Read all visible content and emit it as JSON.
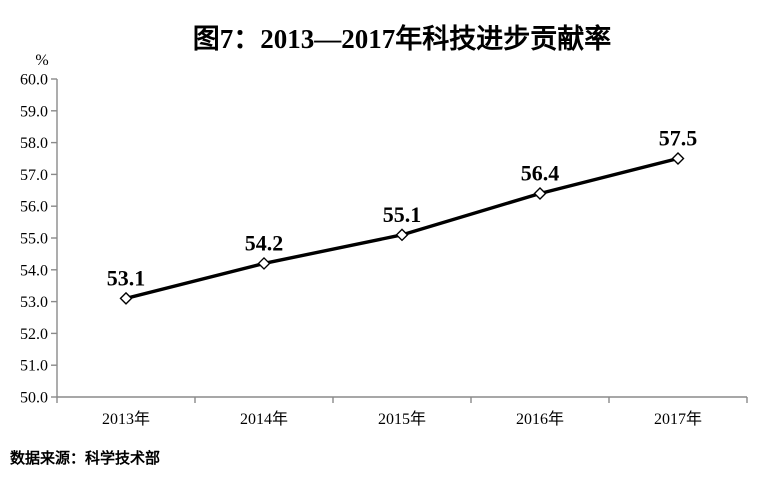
{
  "title": "图7：2013—2017年科技进步贡献率",
  "source_note": "数据来源：科学技术部",
  "chart_data": {
    "type": "line",
    "title": "图7：2013—2017年科技进步贡献率",
    "categories": [
      "2013年",
      "2014年",
      "2015年",
      "2016年",
      "2017年"
    ],
    "series": [
      {
        "name": "科技进步贡献率",
        "values": [
          53.1,
          54.2,
          55.1,
          56.4,
          57.5
        ]
      }
    ],
    "data_labels": [
      "53.1",
      "54.2",
      "55.1",
      "56.4",
      "57.5"
    ],
    "xlabel": "",
    "ylabel": "%",
    "ylim": [
      50.0,
      60.0
    ],
    "ytick_step": 1.0,
    "ytick_decimals": 1,
    "grid": false,
    "legend_position": "none",
    "source": "数据来源：科学技术部",
    "colors": {
      "line": "#000000",
      "marker_fill": "#ffffff",
      "marker_stroke": "#000000",
      "axis": "#8a8a8a",
      "text": "#000000",
      "background": "#ffffff"
    }
  }
}
